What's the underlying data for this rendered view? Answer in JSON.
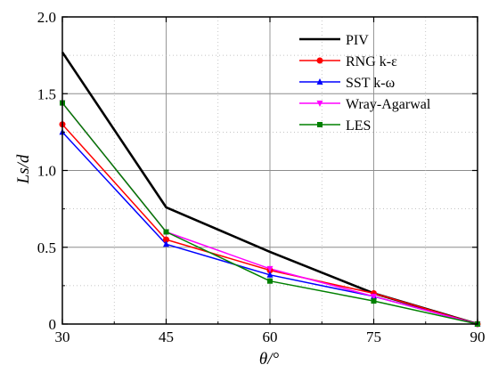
{
  "chart_data": {
    "type": "line",
    "x": [
      30,
      45,
      60,
      75,
      90
    ],
    "xlim": [
      30,
      90
    ],
    "ylim": [
      0,
      2.0
    ],
    "xticks": [
      "30",
      "45",
      "60",
      "75",
      "90"
    ],
    "yticks": [
      "0",
      "0.5",
      "1.0",
      "1.5",
      "2.0"
    ],
    "xlabel": "θ/°",
    "ylabel": "Ls/d",
    "grid": true,
    "legend_position": "top-right",
    "series": [
      {
        "name": "PIV",
        "values": [
          1.77,
          0.76,
          0.47,
          0.2,
          0.0
        ],
        "color": "#000000",
        "marker": "none"
      },
      {
        "name": "RNG k-ε",
        "values": [
          1.3,
          0.55,
          0.35,
          0.2,
          0.0
        ],
        "color": "#ff0000",
        "marker": "circle"
      },
      {
        "name": "SST k-ω",
        "values": [
          1.25,
          0.52,
          0.32,
          0.18,
          0.0
        ],
        "color": "#0000ff",
        "marker": "triangle-up"
      },
      {
        "name": "Wray-Agarwal",
        "values": [
          1.44,
          0.6,
          0.36,
          0.18,
          0.0
        ],
        "color": "#ff00ff",
        "marker": "triangle-down"
      },
      {
        "name": "LES",
        "values": [
          1.44,
          0.6,
          0.28,
          0.15,
          0.0
        ],
        "color": "#008000",
        "marker": "square"
      }
    ]
  }
}
